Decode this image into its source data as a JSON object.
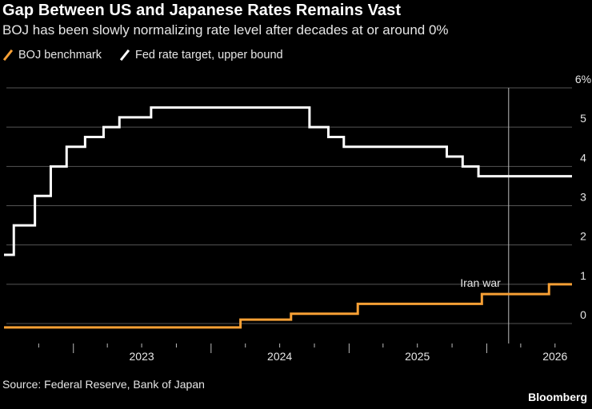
{
  "title": "Gap Between US and Japanese Rates Remains Vast",
  "subtitle": "BOJ has been slowly normalizing rate level after decades at or around 0%",
  "source": "Source: Federal Reserve, Bank of Japan",
  "brand": "Bloomberg",
  "colors": {
    "boj": "#f7a035",
    "fed": "#ffffff",
    "grid": "#555555",
    "background": "#000000"
  },
  "chart_data": {
    "type": "line",
    "step": true,
    "legend_position": "top-left",
    "grid": true,
    "y_axis": {
      "min": -0.5,
      "max": 6,
      "ticks": [
        0,
        1,
        2,
        3,
        4,
        5,
        6
      ],
      "tick_labels": [
        "0",
        "1",
        "2",
        "3",
        "4",
        "5",
        "6%"
      ],
      "position": "right"
    },
    "x_axis": {
      "min": "2022-07-01",
      "max": "2026-08-15",
      "tick_labels": [
        "2023",
        "2024",
        "2025",
        "2026"
      ]
    },
    "series": [
      {
        "name": "BOJ benchmark",
        "color": "#f7a035",
        "points": [
          [
            "2022-07-01",
            -0.1
          ],
          [
            "2024-03-19",
            0.1
          ],
          [
            "2024-07-31",
            0.25
          ],
          [
            "2025-01-24",
            0.5
          ],
          [
            "2025-12-19",
            0.75
          ],
          [
            "2026-06-15",
            1.0
          ],
          [
            "2026-08-15",
            1.0
          ]
        ]
      },
      {
        "name": "Fed rate target, upper bound",
        "color": "#ffffff",
        "points": [
          [
            "2022-07-01",
            1.75
          ],
          [
            "2022-07-27",
            2.5
          ],
          [
            "2022-09-21",
            3.25
          ],
          [
            "2022-11-02",
            4.0
          ],
          [
            "2022-12-14",
            4.5
          ],
          [
            "2023-02-01",
            4.75
          ],
          [
            "2023-03-22",
            5.0
          ],
          [
            "2023-05-03",
            5.25
          ],
          [
            "2023-07-26",
            5.5
          ],
          [
            "2024-09-18",
            5.0
          ],
          [
            "2024-11-07",
            4.75
          ],
          [
            "2024-12-18",
            4.5
          ],
          [
            "2025-09-17",
            4.25
          ],
          [
            "2025-10-29",
            4.0
          ],
          [
            "2025-12-10",
            3.75
          ],
          [
            "2026-08-15",
            3.75
          ]
        ]
      }
    ],
    "annotations": [
      {
        "text": "Iran war",
        "x": "2026-02-28"
      }
    ]
  }
}
